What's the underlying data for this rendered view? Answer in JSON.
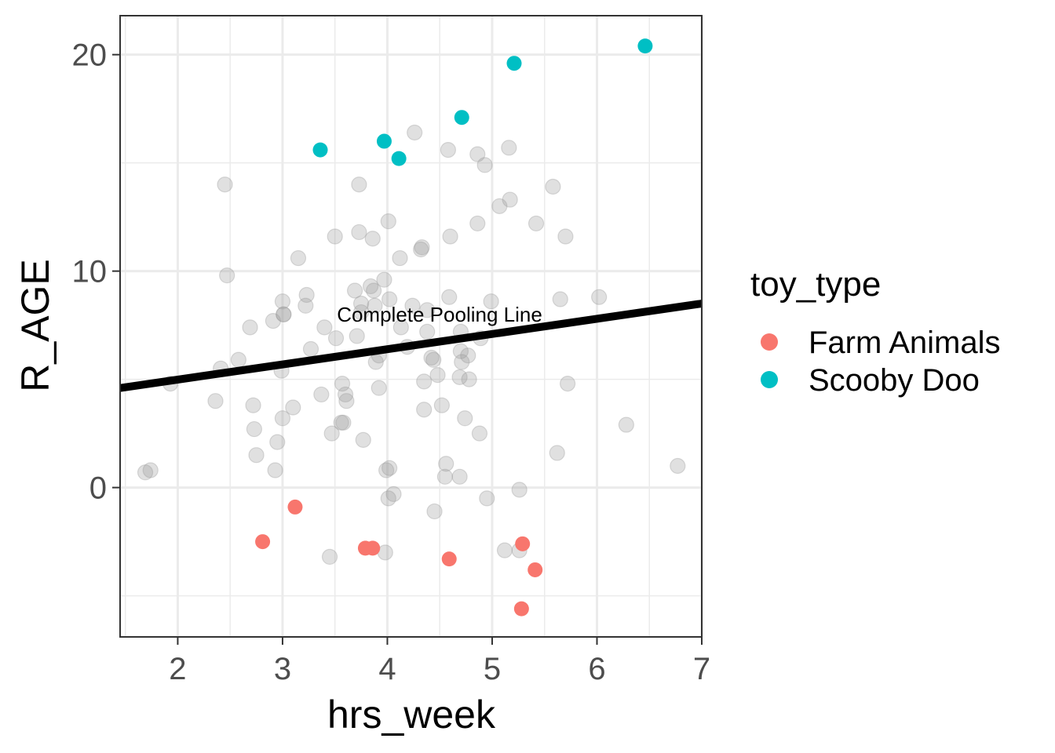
{
  "chart_data": {
    "type": "scatter",
    "xlabel": "hrs_week",
    "ylabel": "R_AGE",
    "xlim": [
      1.45,
      7.0
    ],
    "ylim": [
      -6.9,
      21.8
    ],
    "x_ticks": [
      2,
      3,
      4,
      5,
      6,
      7
    ],
    "y_ticks": [
      0,
      10,
      20
    ],
    "grid": true,
    "legend": {
      "title": "toy_type",
      "position": "right",
      "entries": [
        {
          "label": "Farm Animals",
          "color": "#F8766D"
        },
        {
          "label": "Scooby Doo",
          "color": "#00BFC4"
        }
      ]
    },
    "annotation": "Complete Pooling Line",
    "pooling_line": {
      "x": [
        1.45,
        7.0
      ],
      "y": [
        4.6,
        8.5
      ],
      "color": "#000000"
    },
    "background_points": {
      "color": "#999999",
      "x": [
        1.69,
        1.74,
        1.93,
        2.36,
        2.41,
        2.45,
        2.47,
        2.58,
        2.69,
        2.72,
        2.73,
        2.75,
        2.91,
        2.93,
        2.95,
        2.99,
        3.0,
        3.0,
        3.01,
        3.01,
        3.1,
        3.15,
        3.22,
        3.23,
        3.27,
        3.37,
        3.4,
        3.45,
        3.47,
        3.5,
        3.51,
        3.56,
        3.57,
        3.58,
        3.6,
        3.61,
        3.69,
        3.71,
        3.73,
        3.73,
        3.75,
        3.75,
        3.77,
        3.84,
        3.86,
        3.87,
        3.88,
        3.89,
        3.92,
        3.92,
        3.97,
        3.98,
        3.99,
        4.01,
        4.01,
        4.02,
        4.02,
        4.06,
        4.12,
        4.13,
        4.19,
        4.24,
        4.26,
        4.32,
        4.33,
        4.35,
        4.35,
        4.38,
        4.38,
        4.42,
        4.44,
        4.45,
        4.48,
        4.52,
        4.55,
        4.56,
        4.58,
        4.59,
        4.6,
        4.69,
        4.69,
        4.7,
        4.7,
        4.71,
        4.74,
        4.77,
        4.78,
        4.86,
        4.86,
        4.88,
        4.89,
        4.93,
        4.95,
        4.99,
        5.07,
        5.12,
        5.16,
        5.17,
        5.26,
        5.26,
        5.42,
        5.58,
        5.62,
        5.65,
        5.7,
        5.72,
        6.02,
        6.28,
        6.77
      ],
      "y": [
        0.7,
        0.8,
        4.8,
        4.0,
        5.5,
        14.0,
        9.8,
        5.9,
        7.4,
        3.8,
        2.7,
        1.5,
        7.7,
        0.8,
        2.1,
        5.4,
        3.2,
        8.6,
        8.0,
        8.0,
        3.7,
        10.6,
        8.4,
        8.9,
        6.4,
        4.3,
        7.4,
        -3.2,
        2.5,
        11.6,
        6.9,
        3.0,
        4.8,
        3.0,
        4.3,
        4.0,
        9.1,
        7.0,
        14.0,
        11.8,
        8.1,
        8.5,
        2.2,
        9.3,
        11.5,
        9.1,
        8.4,
        5.8,
        6.1,
        4.6,
        9.6,
        -3.0,
        0.8,
        12.3,
        -0.5,
        0.9,
        8.7,
        -0.3,
        10.6,
        7.4,
        6.5,
        8.4,
        16.4,
        11.0,
        11.1,
        3.6,
        4.9,
        7.2,
        8.2,
        6.0,
        5.9,
        -1.1,
        5.2,
        3.8,
        0.5,
        1.1,
        15.6,
        8.8,
        11.6,
        0.5,
        5.1,
        7.2,
        6.3,
        5.8,
        3.2,
        6.1,
        5.0,
        15.4,
        12.2,
        2.5,
        6.9,
        14.9,
        -0.5,
        8.6,
        13.0,
        -2.9,
        15.7,
        13.3,
        -0.1,
        -2.9,
        12.2,
        13.9,
        1.6,
        8.7,
        11.6,
        4.8,
        8.8,
        2.9,
        1.0
      ]
    },
    "series": [
      {
        "name": "Farm Animals",
        "color": "#F8766D",
        "x": [
          2.81,
          3.12,
          3.79,
          3.86,
          4.59,
          5.29,
          5.28,
          5.41
        ],
        "y": [
          -2.5,
          -0.9,
          -2.8,
          -2.8,
          -3.3,
          -2.6,
          -5.6,
          -3.8
        ]
      },
      {
        "name": "Scooby Doo",
        "color": "#00BFC4",
        "x": [
          3.36,
          3.97,
          4.11,
          4.71,
          5.21,
          6.46
        ],
        "y": [
          15.6,
          16.0,
          15.2,
          17.1,
          19.6,
          20.4
        ]
      }
    ]
  }
}
